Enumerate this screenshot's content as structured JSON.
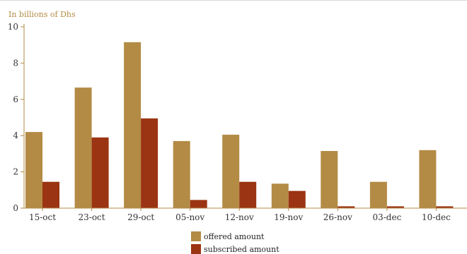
{
  "colors": {
    "offered": "#b38b45",
    "subscribed": "#9b3413",
    "axis": "#b38b45",
    "tick_text": "#333333"
  },
  "chart_data": {
    "type": "bar",
    "title": "",
    "unit_label": "In billions of Dhs",
    "xlabel": "",
    "ylabel": "",
    "ylim": [
      0,
      10
    ],
    "yticks": [
      0,
      2,
      4,
      6,
      8,
      10
    ],
    "grid": false,
    "legend_position": "bottom",
    "categories": [
      "15-oct",
      "23-oct",
      "29-oct",
      "05-nov",
      "12-nov",
      "19-nov",
      "26-nov",
      "03-dec",
      "10-dec"
    ],
    "series": [
      {
        "name": "offered amount",
        "values": [
          4.2,
          6.65,
          9.15,
          3.7,
          4.05,
          1.35,
          3.15,
          1.45,
          3.2
        ]
      },
      {
        "name": "subscribed amount",
        "values": [
          1.45,
          3.9,
          4.95,
          0.45,
          1.45,
          0.95,
          0.1,
          0.1,
          0.1
        ]
      }
    ]
  }
}
